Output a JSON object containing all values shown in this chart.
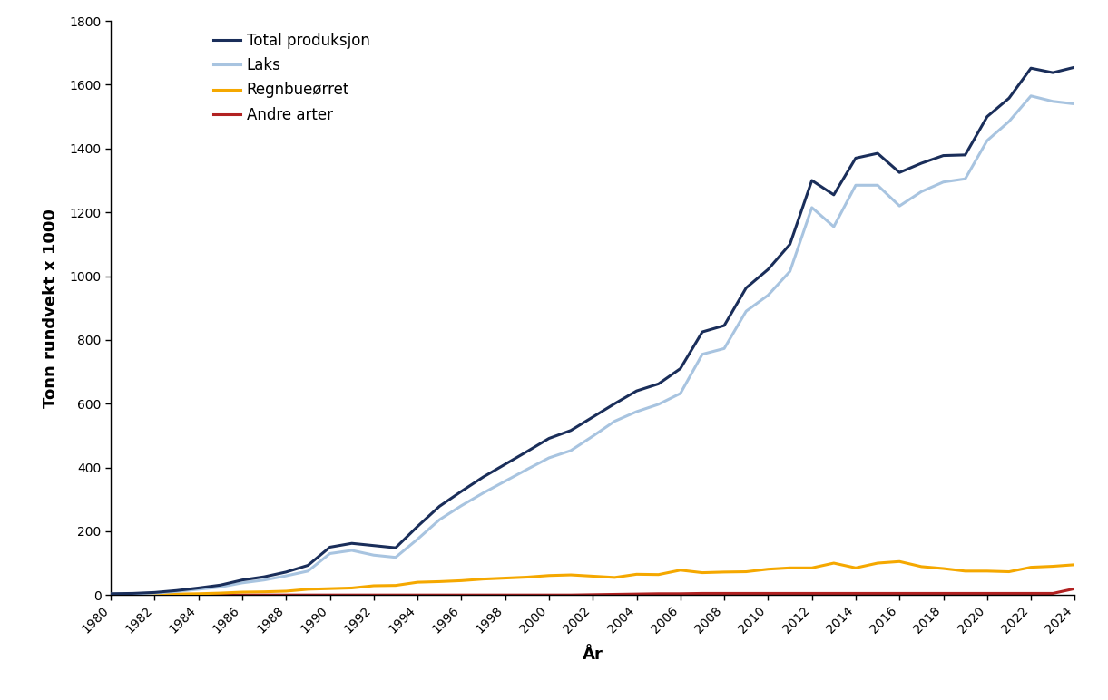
{
  "years": [
    1980,
    1981,
    1982,
    1983,
    1984,
    1985,
    1986,
    1987,
    1988,
    1989,
    1990,
    1991,
    1992,
    1993,
    1994,
    1995,
    1996,
    1997,
    1998,
    1999,
    2000,
    2001,
    2002,
    2003,
    2004,
    2005,
    2006,
    2007,
    2008,
    2009,
    2010,
    2011,
    2012,
    2013,
    2014,
    2015,
    2016,
    2017,
    2018,
    2019,
    2020,
    2021,
    2022,
    2023,
    2024
  ],
  "total": [
    4,
    5,
    8,
    14,
    22,
    31,
    47,
    57,
    72,
    93,
    150,
    162,
    155,
    148,
    215,
    278,
    325,
    370,
    410,
    450,
    491,
    516,
    558,
    600,
    640,
    662,
    710,
    825,
    845,
    963,
    1021,
    1100,
    1300,
    1255,
    1370,
    1385,
    1325,
    1354,
    1378,
    1380,
    1500,
    1558,
    1652,
    1638,
    1655
  ],
  "laks": [
    3,
    4,
    6,
    11,
    18,
    25,
    38,
    47,
    60,
    75,
    130,
    140,
    125,
    118,
    175,
    236,
    280,
    320,
    357,
    394,
    430,
    453,
    498,
    545,
    575,
    598,
    632,
    755,
    773,
    890,
    940,
    1015,
    1215,
    1155,
    1285,
    1285,
    1220,
    1265,
    1295,
    1305,
    1425,
    1485,
    1565,
    1548,
    1540
  ],
  "regnbue": [
    1,
    1,
    2,
    3,
    4,
    6,
    9,
    10,
    12,
    18,
    20,
    22,
    29,
    30,
    40,
    42,
    45,
    50,
    53,
    56,
    61,
    63,
    59,
    55,
    65,
    64,
    78,
    70,
    72,
    73,
    81,
    85,
    85,
    100,
    85,
    100,
    105,
    89,
    83,
    75,
    75,
    73,
    87,
    90,
    95
  ],
  "andre": [
    0,
    0,
    0,
    0,
    0,
    0,
    0,
    0,
    0,
    0,
    0,
    0,
    1,
    0,
    0,
    0,
    0,
    0,
    0,
    0,
    0,
    0,
    1,
    0,
    0,
    0,
    0,
    0,
    0,
    0,
    0,
    0,
    0,
    0,
    0,
    0,
    0,
    0,
    0,
    0,
    0,
    0,
    0,
    0,
    20
  ],
  "andre_peak": [
    0,
    0,
    0,
    0,
    0,
    0,
    0,
    0,
    0,
    0,
    0,
    0,
    0,
    0,
    0,
    0,
    0,
    0,
    0,
    0,
    0,
    0,
    1,
    2,
    3,
    4,
    4,
    5,
    5,
    5,
    5,
    5,
    5,
    5,
    5,
    5,
    5,
    5,
    5,
    5,
    5,
    5,
    5,
    5,
    20
  ],
  "colors": {
    "total": "#1a2e5a",
    "laks": "#a8c4e0",
    "regnbue": "#f5a800",
    "andre": "#b22222"
  },
  "labels": {
    "total": "Total produksjon",
    "laks": "Laks",
    "regnbue": "Regnbueørret",
    "andre": "Andre arter"
  },
  "ylabel": "Tonn rundvekt x 1000",
  "xlabel": "År",
  "ylim": [
    0,
    1800
  ],
  "yticks": [
    0,
    200,
    400,
    600,
    800,
    1000,
    1200,
    1400,
    1600,
    1800
  ],
  "linewidth": 2.2,
  "background_color": "#ffffff",
  "legend_labels": [
    "Total produksjon",
    "Laks",
    "Regnbueørret",
    "Andre arter"
  ],
  "figsize": [
    12.21,
    7.72
  ],
  "dpi": 100
}
